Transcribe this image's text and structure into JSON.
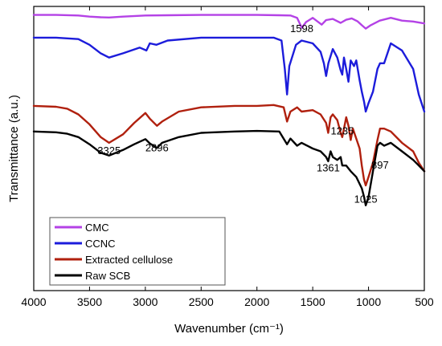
{
  "chart_data": {
    "type": "line",
    "xlabel": "Wavenumber (cm⁻¹)",
    "ylabel": "Transmittance (a.u.)",
    "xlim": [
      4000,
      500
    ],
    "x_reversed": true,
    "xticks": [
      4000,
      3500,
      3000,
      2500,
      2000,
      1500,
      1000,
      500
    ],
    "yticks_shown": false,
    "ylim": [
      0,
      100
    ],
    "grid": false,
    "legend": {
      "placement": "bottom-left",
      "entries": [
        "CMC",
        "CCNC",
        "Extracted cellulose",
        "Raw SCB"
      ]
    },
    "annotations": [
      {
        "text": "1598",
        "x": 1598,
        "y": 91
      },
      {
        "text": "1235",
        "x": 1235,
        "y": 55
      },
      {
        "text": "3325",
        "x": 3325,
        "y": 48
      },
      {
        "text": "2896",
        "x": 2896,
        "y": 49
      },
      {
        "text": "1361",
        "x": 1361,
        "y": 42
      },
      {
        "text": "897",
        "x": 897,
        "y": 43
      },
      {
        "text": "1025",
        "x": 1025,
        "y": 31
      }
    ],
    "series": [
      {
        "name": "CMC",
        "color": "#b442e6",
        "x": [
          4000,
          3800,
          3600,
          3500,
          3400,
          3325,
          3200,
          3000,
          2800,
          2500,
          2200,
          2000,
          1800,
          1700,
          1640,
          1598,
          1560,
          1500,
          1420,
          1380,
          1320,
          1250,
          1200,
          1150,
          1100,
          1060,
          1025,
          980,
          900,
          800,
          700,
          600,
          500
        ],
        "y": [
          97,
          97,
          96.8,
          96.4,
          96.2,
          96.1,
          96.4,
          96.8,
          96.9,
          97,
          97,
          97,
          96.9,
          96.8,
          96,
          92.5,
          94.5,
          96,
          93.6,
          95.2,
          95.6,
          94.2,
          95.3,
          95.8,
          94.8,
          93.4,
          92.2,
          93.4,
          95,
          96,
          95,
          94.7,
          94
        ]
      },
      {
        "name": "CCNC",
        "color": "#1c1cdb",
        "x": [
          4000,
          3800,
          3600,
          3500,
          3400,
          3325,
          3200,
          3050,
          2990,
          2960,
          2900,
          2800,
          2500,
          2200,
          2000,
          1850,
          1780,
          1750,
          1730,
          1710,
          1650,
          1600,
          1500,
          1430,
          1400,
          1380,
          1360,
          1320,
          1280,
          1250,
          1235,
          1220,
          1200,
          1180,
          1160,
          1130,
          1110,
          1080,
          1060,
          1040,
          1025,
          1000,
          960,
          920,
          897,
          860,
          800,
          700,
          600,
          550,
          500
        ],
        "y": [
          89,
          89,
          88.5,
          86.5,
          83.5,
          82,
          83.5,
          85.5,
          84.5,
          87,
          86.5,
          88,
          89,
          89,
          89,
          89,
          88,
          78,
          69,
          79,
          86.5,
          88,
          87,
          84,
          80,
          75.5,
          80,
          85,
          82,
          77.5,
          76,
          82,
          78,
          73.5,
          81,
          79,
          81,
          74,
          70,
          66.5,
          63,
          66,
          70,
          78,
          80,
          80,
          87,
          84.5,
          78,
          69,
          63
        ]
      },
      {
        "name": "Extracted cellulose",
        "color": "#b0200e",
        "x": [
          4000,
          3800,
          3700,
          3600,
          3500,
          3400,
          3325,
          3200,
          3100,
          3000,
          2960,
          2896,
          2850,
          2700,
          2500,
          2200,
          2000,
          1850,
          1760,
          1730,
          1700,
          1640,
          1600,
          1500,
          1430,
          1380,
          1361,
          1340,
          1320,
          1280,
          1250,
          1235,
          1200,
          1180,
          1160,
          1140,
          1110,
          1080,
          1060,
          1040,
          1025,
          1000,
          960,
          920,
          897,
          860,
          800,
          700,
          600,
          550,
          500
        ],
        "y": [
          65,
          64.7,
          64,
          62,
          58.5,
          54,
          52,
          55,
          59,
          62.5,
          60.5,
          58,
          59.5,
          63,
          64.5,
          65,
          65,
          65.3,
          64.5,
          59.5,
          63,
          64.5,
          63,
          63.5,
          62,
          59,
          55.5,
          61,
          62,
          60,
          55.5,
          54,
          61,
          58,
          53,
          57,
          53.5,
          50,
          44,
          39,
          37,
          40,
          45,
          53,
          57,
          57,
          56,
          52,
          49,
          45,
          42
        ]
      },
      {
        "name": "Raw SCB",
        "color": "#000000",
        "x": [
          4000,
          3800,
          3700,
          3600,
          3500,
          3400,
          3325,
          3200,
          3100,
          3000,
          2960,
          2896,
          2850,
          2700,
          2500,
          2200,
          2000,
          1800,
          1730,
          1700,
          1640,
          1600,
          1500,
          1430,
          1380,
          1361,
          1340,
          1320,
          1280,
          1250,
          1235,
          1200,
          1160,
          1110,
          1060,
          1040,
          1025,
          1000,
          960,
          920,
          897,
          860,
          800,
          700,
          600,
          550,
          500
        ],
        "y": [
          56,
          55.7,
          55.2,
          54,
          51.5,
          48.5,
          47.5,
          49.5,
          51.5,
          53.3,
          51.8,
          50.2,
          52,
          54,
          55.5,
          56,
          56.2,
          56,
          51.5,
          53.5,
          51,
          52,
          50,
          49,
          47,
          45.5,
          49,
          47,
          46,
          47,
          44,
          44,
          42,
          40,
          36,
          33,
          30,
          33,
          42,
          51,
          52,
          51,
          52,
          49,
          46,
          44,
          42
        ]
      }
    ]
  }
}
